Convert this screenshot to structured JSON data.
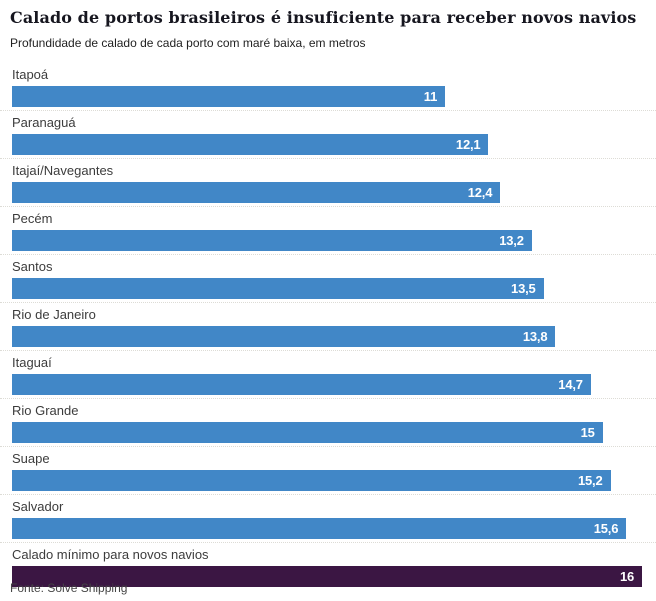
{
  "header": {
    "title": "Calado de portos brasileiros é insuficiente para receber novos navios",
    "subtitle": "Profundidade de calado de cada porto com maré baixa, em metros"
  },
  "footer": {
    "source": "Fonte: Solve Shipping"
  },
  "colors": {
    "bar": "#4187c7",
    "highlight_bar": "#3b1643",
    "value_text": "#ffffff",
    "label_text": "#3c3c3c",
    "separator": "#dddcd6"
  },
  "chart_data": {
    "type": "bar",
    "orientation": "horizontal",
    "title": "Calado de portos brasileiros é insuficiente para receber novos navios",
    "subtitle": "Profundidade de calado de cada porto com maré baixa, em metros",
    "source": "Fonte: Solve Shipping",
    "unit": "metros",
    "xlim": [
      0,
      16
    ],
    "grid": false,
    "legend": "none",
    "categories": [
      "Itapoá",
      "Paranaguá",
      "Itajaí/Navegantes",
      "Pecém",
      "Santos",
      "Rio de Janeiro",
      "Itaguaí",
      "Rio Grande",
      "Suape",
      "Salvador",
      "Calado mínimo para novos navios"
    ],
    "values": [
      11,
      12.1,
      12.4,
      13.2,
      13.5,
      13.8,
      14.7,
      15,
      15.2,
      15.6,
      16
    ],
    "value_labels": [
      "11",
      "12,1",
      "12,4",
      "13,2",
      "13,5",
      "13,8",
      "14,7",
      "15",
      "15,2",
      "15,6",
      "16"
    ],
    "highlight_index": 10,
    "highlight_label": "Calado mínimo para novos navios"
  }
}
